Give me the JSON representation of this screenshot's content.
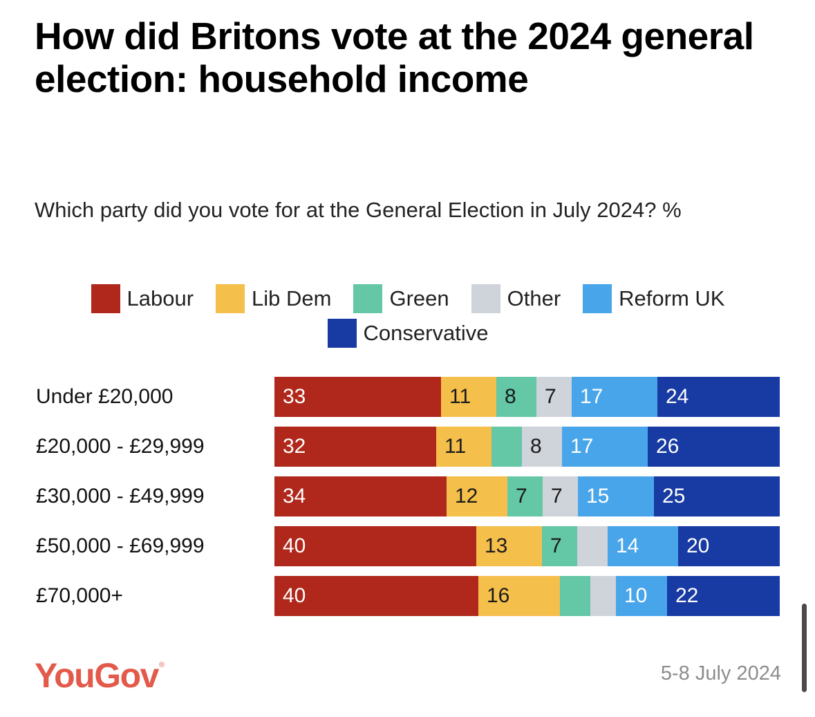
{
  "header": {
    "title": "How did Britons vote at the 2024 general election: household income",
    "subtitle": "Which party did you vote for at the General Election in July 2024? %"
  },
  "footer": {
    "brand": "YouGov",
    "date": "5-8 July 2024"
  },
  "chart_data": {
    "type": "bar",
    "orientation": "horizontal",
    "stacked": true,
    "title": "How did Britons vote at the 2024 general election: household income",
    "subtitle": "Which party did you vote for at the General Election in July 2024? %",
    "categories": [
      "Under £20,000",
      "£20,000 - £29,999",
      "£30,000 - £49,999",
      "£50,000 - £69,999",
      "£70,000+"
    ],
    "legend_position": "top",
    "grid": false,
    "series": [
      {
        "name": "Labour",
        "color": "#b0281b",
        "label_color": "#ffffff",
        "values": [
          33,
          32,
          34,
          40,
          40
        ],
        "labels": [
          "33",
          "32",
          "34",
          "40",
          "40"
        ]
      },
      {
        "name": "Lib Dem",
        "color": "#f4bf4b",
        "label_color": "#1a1a1a",
        "values": [
          11,
          11,
          12,
          13,
          16
        ],
        "labels": [
          "11",
          "11",
          "12",
          "13",
          "16"
        ]
      },
      {
        "name": "Green",
        "color": "#64c7a6",
        "label_color": "#1a1a1a",
        "values": [
          8,
          6,
          7,
          7,
          6
        ],
        "labels": [
          "8",
          "",
          "7",
          "7",
          ""
        ]
      },
      {
        "name": "Other",
        "color": "#cfd3da",
        "label_color": "#1a1a1a",
        "values": [
          7,
          8,
          7,
          6,
          5
        ],
        "labels": [
          "7",
          "8",
          "7",
          "",
          ""
        ]
      },
      {
        "name": "Reform UK",
        "color": "#49a5ea",
        "label_color": "#ffffff",
        "values": [
          17,
          17,
          15,
          14,
          10
        ],
        "labels": [
          "17",
          "17",
          "15",
          "14",
          "10"
        ]
      },
      {
        "name": "Conservative",
        "color": "#183aa3",
        "label_color": "#ffffff",
        "values": [
          24,
          26,
          25,
          20,
          22
        ],
        "labels": [
          "24",
          "26",
          "25",
          "20",
          "22"
        ]
      }
    ]
  }
}
